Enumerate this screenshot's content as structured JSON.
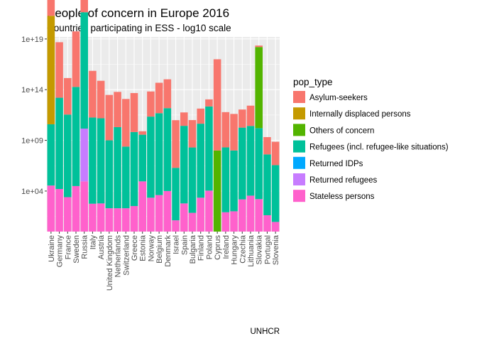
{
  "chart_data": {
    "type": "bar",
    "stacked": true,
    "title": "People of concern in Europe 2016",
    "subtitle": "Countries participating in ESS - log10 scale",
    "caption": "UNHCR",
    "xlabel": "",
    "ylabel": "",
    "y_scale": "log10",
    "y_stack_exponents": [
      0,
      19.2
    ],
    "y_tick_labels": [
      "1e+04",
      "1e+09",
      "1e+14",
      "1e+19"
    ],
    "y_tick_exponents": [
      4,
      9,
      14,
      19
    ],
    "grid": true,
    "legend_position": "right",
    "legend_title": "pop_type",
    "categories": [
      "Ukraine",
      "Germany",
      "France",
      "Sweden",
      "Russia",
      "Italy",
      "Austria",
      "United Kingdom",
      "Netherlands",
      "Switzerland",
      "Greece",
      "Estonia",
      "Norway",
      "Belgium",
      "Denmark",
      "Israel",
      "Spain",
      "Bulgaria",
      "Finland",
      "Poland",
      "Cyprus",
      "Ireland",
      "Hungary",
      "Czechia",
      "Lithuania",
      "Slovakia",
      "Portugal",
      "Slovenia"
    ],
    "series": [
      {
        "name": "Stateless persons",
        "color": "#FF61CC",
        "values": [
          35000,
          16000,
          2500,
          31000,
          90000,
          560,
          600,
          200,
          200,
          200,
          330,
          90000,
          2200,
          4000,
          10000,
          12,
          600,
          70,
          2200,
          11000,
          0,
          80,
          100,
          1500,
          3500,
          1600,
          40,
          8
        ]
      },
      {
        "name": "Returned refugees",
        "color": "#C77CFF",
        "values": [
          0,
          0,
          0,
          0,
          160000,
          0,
          0,
          0,
          0,
          0,
          0,
          0,
          0,
          0,
          0,
          0,
          0,
          0,
          0,
          0,
          0,
          0,
          0,
          0,
          0,
          0,
          0,
          0
        ]
      },
      {
        "name": "Returned IDPs",
        "color": "#00A9FF",
        "values": [
          0,
          0,
          0,
          0,
          0,
          0,
          0,
          0,
          0,
          0,
          0,
          0,
          0,
          0,
          0,
          0,
          0,
          0,
          0,
          0,
          0,
          0,
          0,
          0,
          0,
          0,
          0,
          0
        ]
      },
      {
        "name": "Refugees (incl. refugee-like situations)",
        "color": "#00C19A",
        "values": [
          1100000,
          1000000000,
          140000000,
          6000000000,
          300000000000,
          320000000,
          250000000,
          5000000,
          100000000,
          1200000,
          20000000,
          40000,
          100000000,
          120000000,
          150000000,
          150000,
          45000000,
          2800000,
          20000000,
          200000000,
          0,
          2500000,
          1000000,
          12000000,
          7500000,
          10000000,
          1000000,
          400000
        ]
      },
      {
        "name": "Others of concern",
        "color": "#53B400",
        "values": [
          0,
          0,
          0,
          0,
          0,
          0,
          0,
          0,
          0,
          0,
          0,
          0,
          0,
          0,
          0,
          0,
          0,
          0,
          0,
          0,
          100000000,
          0,
          0,
          0,
          0,
          100000000,
          0,
          0
        ]
      },
      {
        "name": "Internally displaced persons",
        "color": "#C49A00",
        "values": [
          50000000000,
          0,
          0,
          0,
          0,
          0,
          0,
          0,
          0,
          0,
          0,
          0,
          0,
          0,
          0,
          0,
          0,
          0,
          0,
          0,
          0,
          0,
          0,
          0,
          0,
          0,
          0,
          0
        ]
      },
      {
        "name": "Asylum-seekers",
        "color": "#F8766D",
        "values": [
          100000,
          300000,
          4000,
          300000,
          20000,
          40000,
          5000,
          30000,
          3000,
          50000,
          7000,
          1.2,
          300,
          1000,
          700,
          50000,
          20,
          500,
          30,
          4,
          1000000000,
          3000,
          4000,
          60,
          100,
          0.4,
          50,
          200
        ]
      }
    ],
    "legend_order": [
      "Asylum-seekers",
      "Internally displaced persons",
      "Others of concern",
      "Refugees (incl. refugee-like situations)",
      "Returned IDPs",
      "Returned refugees",
      "Stateless persons"
    ]
  }
}
